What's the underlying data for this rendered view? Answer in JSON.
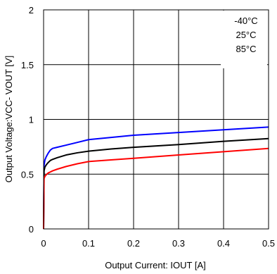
{
  "chart_data": {
    "type": "line",
    "title": "",
    "xlabel": "Output Current: IOUT [A]",
    "ylabel": "Output Voltage:VCC- VOUT [V]",
    "xlim": [
      0,
      0.5
    ],
    "ylim": [
      0,
      2
    ],
    "xticks": [
      "0",
      "0.1",
      "0.2",
      "0.3",
      "0.4",
      "0.5"
    ],
    "yticks": [
      "0",
      "0.5",
      "1",
      "1.5",
      "2"
    ],
    "grid": true,
    "legend_position": "top-right",
    "series": [
      {
        "name": "-40°C",
        "color": "#0000ff",
        "x": [
          0,
          0.001,
          0.003,
          0.006,
          0.01,
          0.015,
          0.02,
          0.03,
          0.05,
          0.075,
          0.1,
          0.15,
          0.2,
          0.3,
          0.4,
          0.5
        ],
        "y": [
          0,
          0.58,
          0.63,
          0.66,
          0.69,
          0.72,
          0.735,
          0.745,
          0.765,
          0.79,
          0.815,
          0.835,
          0.855,
          0.88,
          0.905,
          0.93
        ]
      },
      {
        "name": "25°C",
        "color": "#000000",
        "x": [
          0,
          0.001,
          0.003,
          0.006,
          0.01,
          0.015,
          0.02,
          0.03,
          0.05,
          0.075,
          0.1,
          0.15,
          0.2,
          0.3,
          0.4,
          0.5
        ],
        "y": [
          0,
          0.53,
          0.565,
          0.585,
          0.605,
          0.625,
          0.635,
          0.65,
          0.675,
          0.695,
          0.71,
          0.73,
          0.745,
          0.77,
          0.8,
          0.825
        ]
      },
      {
        "name": "85°C",
        "color": "#ff0000",
        "x": [
          0,
          0.001,
          0.003,
          0.006,
          0.01,
          0.015,
          0.02,
          0.03,
          0.05,
          0.075,
          0.1,
          0.15,
          0.2,
          0.3,
          0.4,
          0.5
        ],
        "y": [
          0,
          0.46,
          0.48,
          0.495,
          0.51,
          0.52,
          0.53,
          0.545,
          0.57,
          0.595,
          0.615,
          0.63,
          0.645,
          0.675,
          0.705,
          0.735
        ]
      }
    ]
  }
}
